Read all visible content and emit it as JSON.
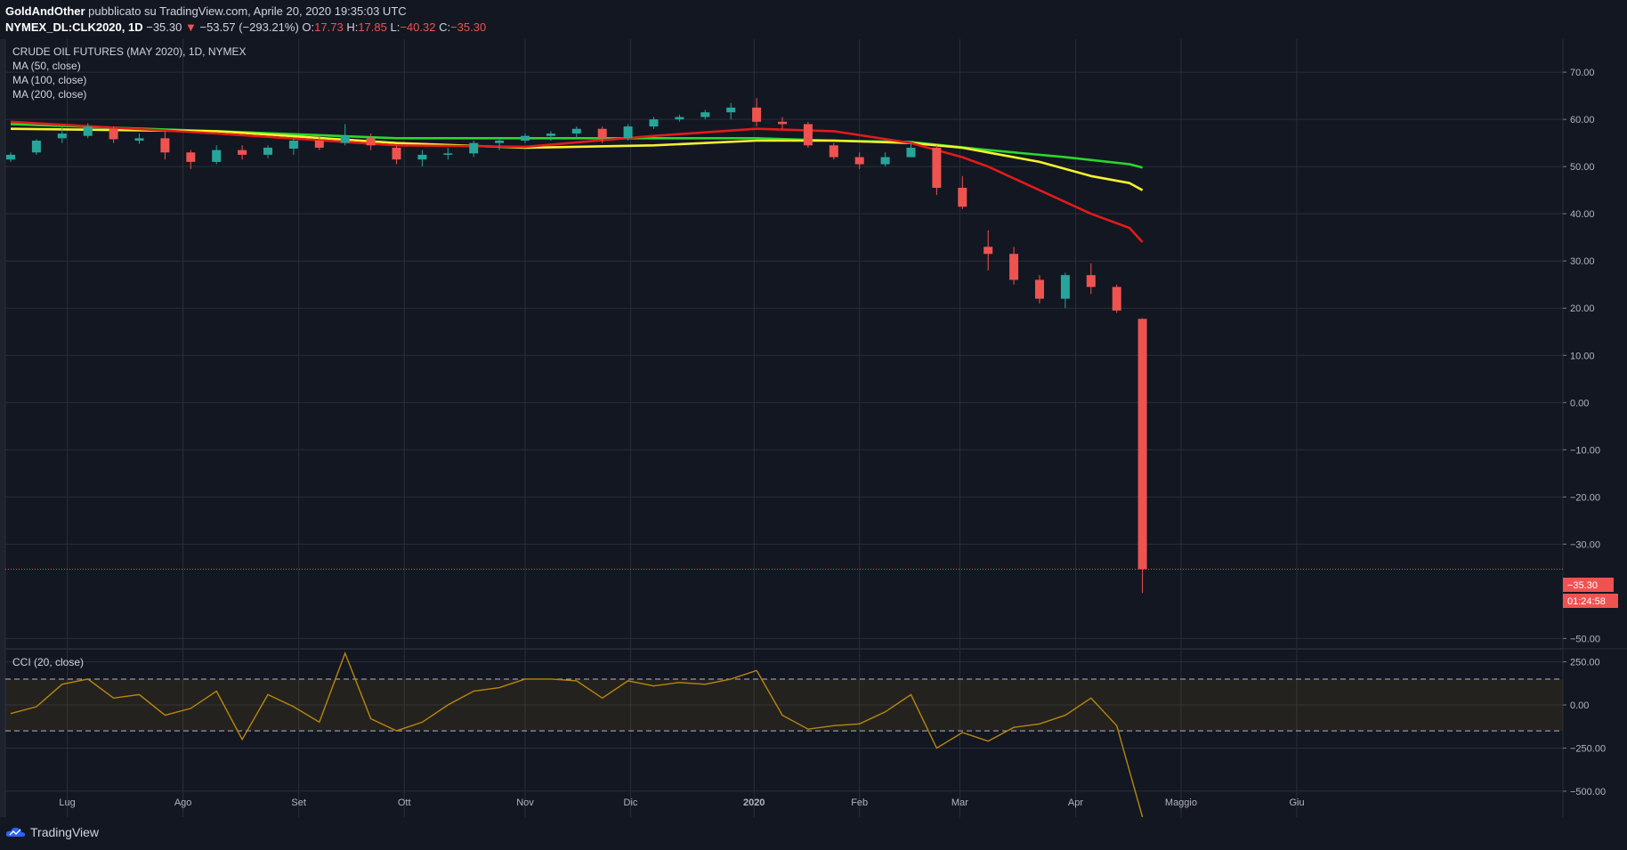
{
  "header": {
    "author": "GoldAndOther",
    "published_text": "pubblicato su TradingView.com, Aprile 20, 2020 19:35:03 UTC",
    "symbol": "NYMEX_DL:CLK2020, 1D",
    "last": "−35.30",
    "change": "−53.57 (−293.21%)",
    "open_label": "O:",
    "open": "17.73",
    "high_label": "H:",
    "high": "17.85",
    "low_label": "L:",
    "low": "−40.32",
    "close_label": "C:",
    "close": "−35.30"
  },
  "legend": {
    "title": "CRUDE OIL FUTURES (MAY 2020), 1D, NYMEX",
    "ma50": "MA (50, close)",
    "ma100": "MA (100, close)",
    "ma200": "MA (200, close)",
    "cci": "CCI (20, close)"
  },
  "price_axis": {
    "ticks": [
      70,
      60,
      50,
      40,
      30,
      20,
      10,
      0,
      -10,
      -20,
      -30,
      -50
    ],
    "tick_labels": [
      "70.00",
      "60.00",
      "50.00",
      "40.00",
      "30.00",
      "20.00",
      "10.00",
      "0.00",
      "−10.00",
      "−20.00",
      "−30.00",
      "−50.00"
    ],
    "last_price_label": "−35.30",
    "countdown_label": "01:24:58"
  },
  "cci_axis": {
    "ticks": [
      250,
      0,
      -250,
      -500
    ],
    "tick_labels": [
      "250.00",
      "0.00",
      "−250.00",
      "−500.00"
    ],
    "band_upper": 150,
    "band_lower": -150
  },
  "time_axis": {
    "labels": [
      "Lug",
      "Ago",
      "Set",
      "Ott",
      "Nov",
      "Dic",
      "2020",
      "Feb",
      "Mar",
      "Apr",
      "Maggio",
      "Giu"
    ]
  },
  "colors": {
    "up": "#26a69a",
    "down": "#ef5350",
    "ma50": "#e21b1b",
    "ma100": "#f5f230",
    "ma200": "#2bd82b",
    "cci": "#b8860b",
    "grid": "#2a2e39",
    "background": "#131722"
  },
  "footer": {
    "brand": "TradingView"
  },
  "chart_data": {
    "type": "candlestick",
    "title": "CRUDE OIL FUTURES (MAY 2020), 1D, NYMEX",
    "ylim": [
      -52,
      77
    ],
    "cci_ylim": [
      -650,
      320
    ],
    "candles": [
      {
        "date": "2019-06-17",
        "o": 51.5,
        "h": 53.0,
        "l": 51.0,
        "c": 52.5
      },
      {
        "date": "2019-06-24",
        "o": 53.0,
        "h": 55.8,
        "l": 52.5,
        "c": 55.5
      },
      {
        "date": "2019-07-01",
        "o": 56.0,
        "h": 58.5,
        "l": 55.0,
        "c": 57.0
      },
      {
        "date": "2019-07-08",
        "o": 56.5,
        "h": 59.2,
        "l": 56.0,
        "c": 58.5
      },
      {
        "date": "2019-07-15",
        "o": 58.0,
        "h": 58.5,
        "l": 55.0,
        "c": 55.8
      },
      {
        "date": "2019-07-22",
        "o": 55.5,
        "h": 57.0,
        "l": 54.8,
        "c": 56.0
      },
      {
        "date": "2019-07-29",
        "o": 56.0,
        "h": 57.5,
        "l": 51.5,
        "c": 53.0
      },
      {
        "date": "2019-08-05",
        "o": 53.0,
        "h": 53.5,
        "l": 49.5,
        "c": 51.0
      },
      {
        "date": "2019-08-12",
        "o": 51.0,
        "h": 54.5,
        "l": 50.5,
        "c": 53.5
      },
      {
        "date": "2019-08-19",
        "o": 53.5,
        "h": 54.5,
        "l": 51.5,
        "c": 52.5
      },
      {
        "date": "2019-08-26",
        "o": 52.5,
        "h": 54.5,
        "l": 51.8,
        "c": 54.0
      },
      {
        "date": "2019-09-02",
        "o": 53.8,
        "h": 56.0,
        "l": 52.5,
        "c": 55.5
      },
      {
        "date": "2019-09-09",
        "o": 55.5,
        "h": 56.5,
        "l": 53.5,
        "c": 54.0
      },
      {
        "date": "2019-09-16",
        "o": 55.0,
        "h": 59.0,
        "l": 54.5,
        "c": 56.5
      },
      {
        "date": "2019-09-23",
        "o": 56.0,
        "h": 57.0,
        "l": 53.5,
        "c": 54.5
      },
      {
        "date": "2019-09-30",
        "o": 54.0,
        "h": 54.5,
        "l": 50.5,
        "c": 51.5
      },
      {
        "date": "2019-10-07",
        "o": 51.5,
        "h": 53.5,
        "l": 50.0,
        "c": 52.5
      },
      {
        "date": "2019-10-14",
        "o": 52.5,
        "h": 54.0,
        "l": 51.5,
        "c": 52.8
      },
      {
        "date": "2019-10-21",
        "o": 52.8,
        "h": 55.5,
        "l": 52.0,
        "c": 55.0
      },
      {
        "date": "2019-10-28",
        "o": 55.0,
        "h": 56.0,
        "l": 53.5,
        "c": 55.5
      },
      {
        "date": "2019-11-04",
        "o": 55.5,
        "h": 57.0,
        "l": 55.0,
        "c": 56.5
      },
      {
        "date": "2019-11-11",
        "o": 56.5,
        "h": 57.5,
        "l": 55.5,
        "c": 57.0
      },
      {
        "date": "2019-11-18",
        "o": 57.0,
        "h": 58.5,
        "l": 56.0,
        "c": 58.0
      },
      {
        "date": "2019-11-25",
        "o": 58.0,
        "h": 58.5,
        "l": 55.0,
        "c": 56.0
      },
      {
        "date": "2019-12-02",
        "o": 56.0,
        "h": 59.0,
        "l": 55.5,
        "c": 58.5
      },
      {
        "date": "2019-12-09",
        "o": 58.5,
        "h": 60.5,
        "l": 58.0,
        "c": 60.0
      },
      {
        "date": "2019-12-16",
        "o": 60.0,
        "h": 61.0,
        "l": 59.5,
        "c": 60.5
      },
      {
        "date": "2019-12-23",
        "o": 60.5,
        "h": 62.0,
        "l": 60.0,
        "c": 61.5
      },
      {
        "date": "2019-12-30",
        "o": 61.5,
        "h": 63.5,
        "l": 60.0,
        "c": 62.5
      },
      {
        "date": "2020-01-06",
        "o": 62.5,
        "h": 64.5,
        "l": 58.5,
        "c": 59.5
      },
      {
        "date": "2020-01-13",
        "o": 59.5,
        "h": 60.5,
        "l": 58.0,
        "c": 59.0
      },
      {
        "date": "2020-01-20",
        "o": 59.0,
        "h": 59.5,
        "l": 54.0,
        "c": 54.5
      },
      {
        "date": "2020-01-27",
        "o": 54.5,
        "h": 55.0,
        "l": 51.5,
        "c": 52.0
      },
      {
        "date": "2020-02-03",
        "o": 52.0,
        "h": 53.0,
        "l": 49.5,
        "c": 50.5
      },
      {
        "date": "2020-02-10",
        "o": 50.5,
        "h": 53.0,
        "l": 50.0,
        "c": 52.0
      },
      {
        "date": "2020-02-17",
        "o": 52.0,
        "h": 55.0,
        "l": 52.0,
        "c": 54.0
      },
      {
        "date": "2020-02-24",
        "o": 54.0,
        "h": 54.5,
        "l": 44.0,
        "c": 45.5
      },
      {
        "date": "2020-03-02",
        "o": 45.5,
        "h": 48.0,
        "l": 41.0,
        "c": 41.5
      },
      {
        "date": "2020-03-09",
        "o": 33.0,
        "h": 36.5,
        "l": 28.0,
        "c": 31.5
      },
      {
        "date": "2020-03-16",
        "o": 31.5,
        "h": 33.0,
        "l": 25.0,
        "c": 26.0
      },
      {
        "date": "2020-03-23",
        "o": 26.0,
        "h": 27.0,
        "l": 21.0,
        "c": 22.0
      },
      {
        "date": "2020-03-30",
        "o": 22.0,
        "h": 27.5,
        "l": 20.0,
        "c": 27.0
      },
      {
        "date": "2020-04-06",
        "o": 27.0,
        "h": 29.5,
        "l": 23.0,
        "c": 24.5
      },
      {
        "date": "2020-04-13",
        "o": 24.5,
        "h": 25.0,
        "l": 19.0,
        "c": 19.5
      },
      {
        "date": "2020-04-20",
        "o": 17.73,
        "h": 17.85,
        "l": -40.32,
        "c": -35.3
      }
    ],
    "series": [
      {
        "name": "MA (50, close)",
        "points": [
          [
            0,
            59.5
          ],
          [
            8,
            57.0
          ],
          [
            15,
            54.5
          ],
          [
            20,
            54.2
          ],
          [
            25,
            56.5
          ],
          [
            29,
            58.0
          ],
          [
            32,
            57.5
          ],
          [
            35,
            55.0
          ],
          [
            37,
            52.0
          ],
          [
            38,
            50.0
          ],
          [
            40,
            45.0
          ],
          [
            42,
            40.0
          ],
          [
            43.5,
            37.0
          ],
          [
            44,
            34.0
          ]
        ]
      },
      {
        "name": "MA (100, close)",
        "points": [
          [
            0,
            58.0
          ],
          [
            8,
            57.5
          ],
          [
            15,
            55.0
          ],
          [
            20,
            54.0
          ],
          [
            25,
            54.5
          ],
          [
            29,
            55.5
          ],
          [
            32,
            55.5
          ],
          [
            35,
            55.0
          ],
          [
            37,
            54.0
          ],
          [
            40,
            51.0
          ],
          [
            42,
            48.0
          ],
          [
            43.5,
            46.5
          ],
          [
            44,
            45.0
          ]
        ]
      },
      {
        "name": "MA (200, close)",
        "points": [
          [
            0,
            59.0
          ],
          [
            8,
            57.5
          ],
          [
            15,
            56.0
          ],
          [
            20,
            56.0
          ],
          [
            25,
            56.0
          ],
          [
            29,
            56.0
          ],
          [
            32,
            55.5
          ],
          [
            35,
            55.2
          ],
          [
            38,
            53.5
          ],
          [
            41,
            52.0
          ],
          [
            43.5,
            50.5
          ],
          [
            44,
            49.8
          ]
        ]
      }
    ],
    "cci": [
      -50,
      -10,
      120,
      150,
      40,
      60,
      -60,
      -20,
      80,
      -200,
      60,
      -10,
      -100,
      300,
      -80,
      -150,
      -100,
      0,
      80,
      100,
      150,
      150,
      140,
      40,
      140,
      110,
      130,
      120,
      150,
      200,
      -60,
      -140,
      -120,
      -110,
      -40,
      60,
      -250,
      -160,
      -210,
      -130,
      -110,
      -60,
      40,
      -120,
      -650
    ],
    "time_labels": [
      "Lug",
      "Ago",
      "Set",
      "Ott",
      "Nov",
      "Dic",
      "2020",
      "Feb",
      "Mar",
      "Apr",
      "Maggio",
      "Giu"
    ]
  }
}
